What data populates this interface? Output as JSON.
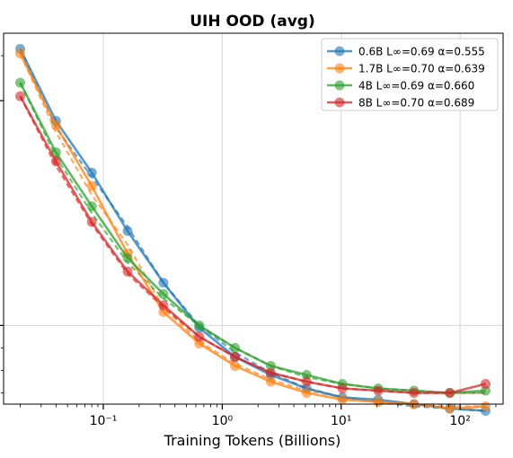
{
  "chart_data": {
    "type": "line",
    "title": "UIH OOD (avg)",
    "xlabel": "Training Tokens (Billions)",
    "ylabel": "",
    "xscale": "log",
    "xlim": [
      0.0145,
      230
    ],
    "ylim": [
      0.65,
      2.3
    ],
    "x_tick_labels": [
      "10⁻¹",
      "10⁰",
      "10¹",
      "10²"
    ],
    "x_tick_values": [
      0.1,
      1,
      10,
      100
    ],
    "grid": true,
    "legend": "top-right",
    "x": [
      0.02,
      0.04,
      0.08,
      0.16,
      0.32,
      0.64,
      1.28,
      2.56,
      5.12,
      10.24,
      20.48,
      40.96,
      81.92,
      163.84
    ],
    "series": [
      {
        "name": "0.6B L∞=0.69 α=0.555",
        "color": "#1f77b4",
        "values": [
          2.23,
          1.91,
          1.68,
          1.42,
          1.19,
          0.99,
          0.86,
          0.78,
          0.72,
          0.68,
          0.67,
          0.65,
          0.63,
          0.62
        ],
        "fit": [
          2.23,
          1.88,
          1.66,
          1.44,
          1.19,
          1.0,
          0.88,
          0.79,
          0.72,
          0.68,
          0.66,
          0.64,
          0.63,
          0.62
        ]
      },
      {
        "name": "1.7B L∞=0.70 α=0.639",
        "color": "#ff7f0e",
        "values": [
          2.21,
          1.89,
          1.62,
          1.32,
          1.06,
          0.92,
          0.82,
          0.75,
          0.7,
          0.67,
          0.66,
          0.65,
          0.63,
          0.64
        ],
        "fit": [
          2.21,
          1.86,
          1.58,
          1.36,
          1.08,
          0.93,
          0.83,
          0.76,
          0.71,
          0.68,
          0.66,
          0.65,
          0.64,
          0.64
        ]
      },
      {
        "name": "4B L∞=0.69 α=0.660",
        "color": "#2ca02c",
        "values": [
          2.08,
          1.77,
          1.53,
          1.3,
          1.14,
          1.0,
          0.9,
          0.82,
          0.78,
          0.74,
          0.72,
          0.71,
          0.7,
          0.71
        ],
        "fit": [
          2.08,
          1.75,
          1.5,
          1.28,
          1.12,
          1.0,
          0.9,
          0.82,
          0.77,
          0.74,
          0.72,
          0.71,
          0.7,
          0.7
        ]
      },
      {
        "name": "8B L∞=0.70 α=0.689",
        "color": "#d62728",
        "values": [
          2.02,
          1.73,
          1.46,
          1.24,
          1.09,
          0.95,
          0.86,
          0.79,
          0.75,
          0.72,
          0.71,
          0.7,
          0.7,
          0.74
        ],
        "fit": [
          2.02,
          1.71,
          1.45,
          1.23,
          1.08,
          0.95,
          0.86,
          0.79,
          0.75,
          0.72,
          0.71,
          0.7,
          0.7,
          0.7
        ]
      }
    ]
  }
}
